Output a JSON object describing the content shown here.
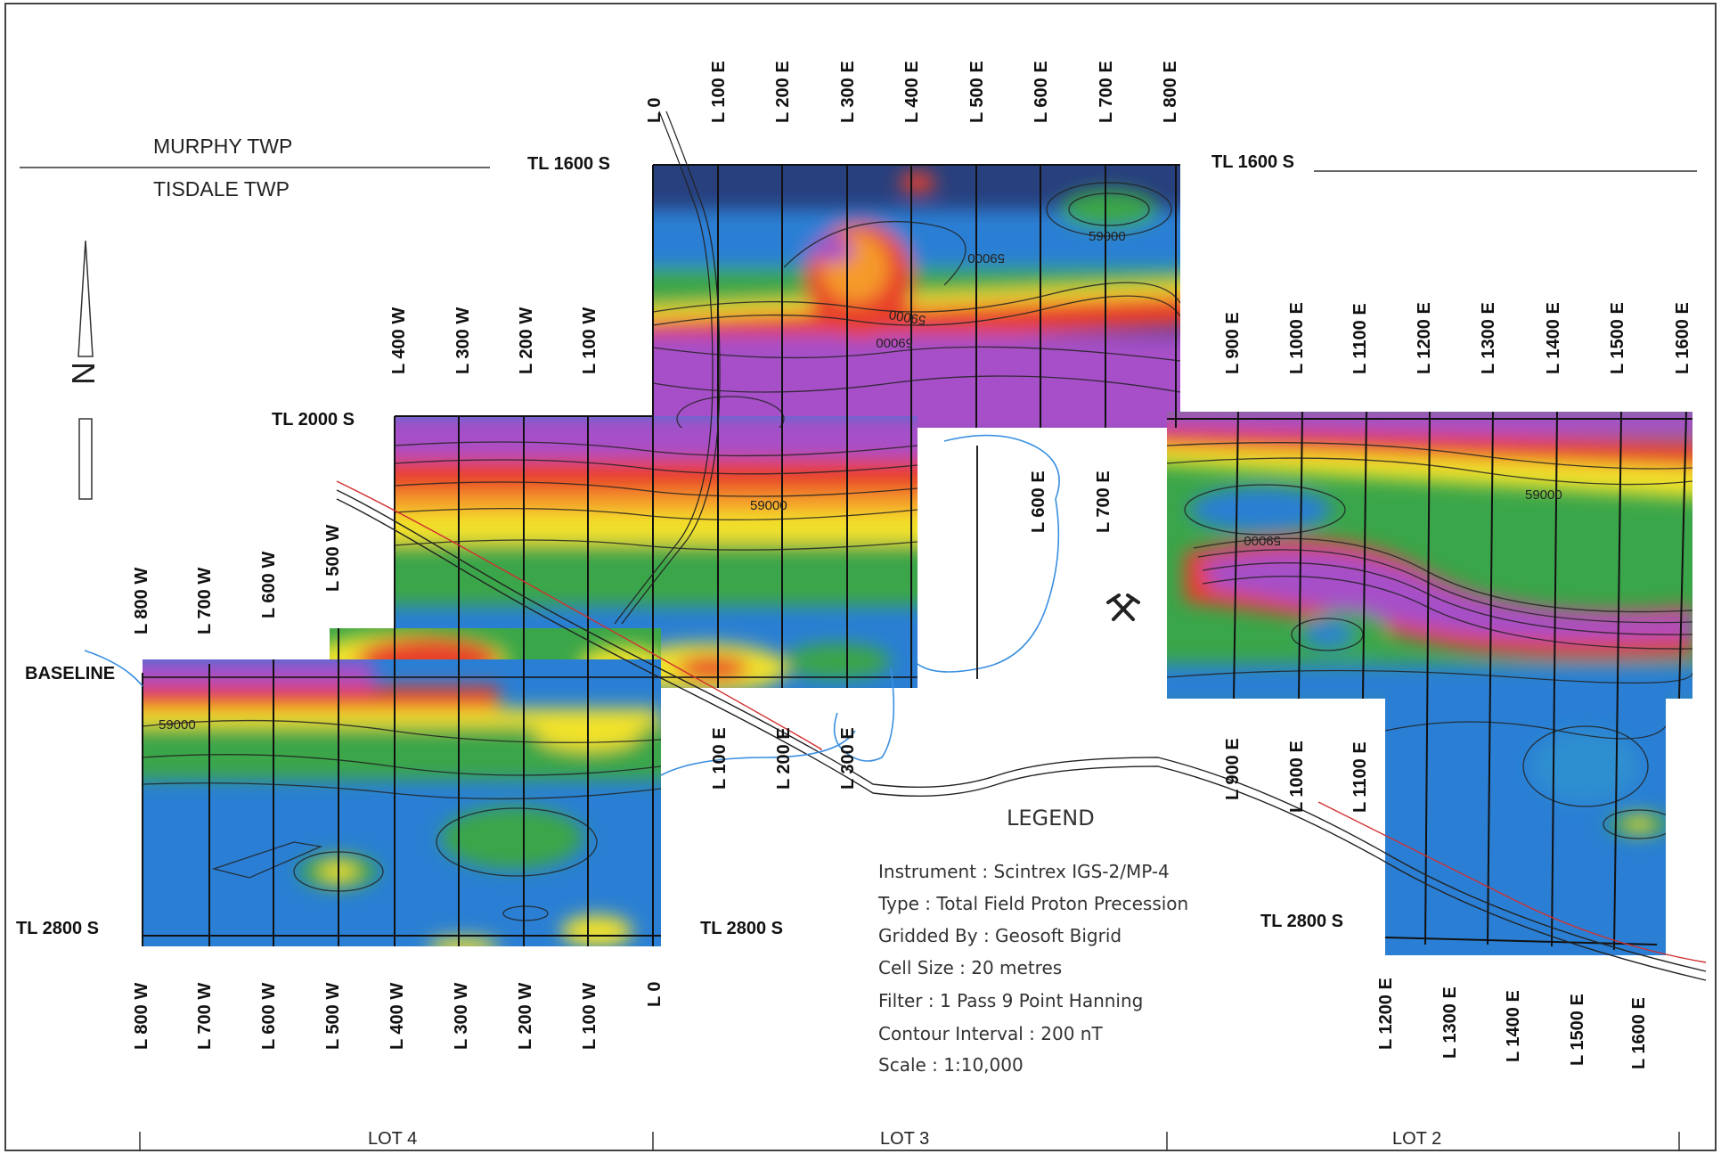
{
  "townships": {
    "north": "MURPHY TWP",
    "south": "TISDALE TWP"
  },
  "north_arrow": "N",
  "baseline_label": "BASELINE",
  "tie_lines": {
    "tl1600_left": "TL 1600 S",
    "tl1600_right": "TL 1600 S",
    "tl2000": "TL 2000 S",
    "tl2800_left": "TL 2800 S",
    "tl2800_mid": "TL 2800 S",
    "tl2800_right": "TL 2800 S"
  },
  "line_labels": {
    "top_center": [
      "L 0",
      "L 100 E",
      "L 200 E",
      "L 300 E",
      "L 400 E",
      "L 500 E",
      "L 600 E",
      "L 700 E",
      "L 800 E"
    ],
    "top_west": [
      "L 400 W",
      "L 300 W",
      "L 200 W",
      "L 100 W"
    ],
    "top_east": [
      "L 900 E",
      "L 1000 E",
      "L 1100 E",
      "L 1200 E",
      "L 1300 E",
      "L 1400 E",
      "L 1500 E",
      "L 1600 E"
    ],
    "mid_west": [
      "L 800 W",
      "L 700 W",
      "L 600 W",
      "L 500 W"
    ],
    "mid_center": [
      "L 600 E",
      "L 700 E"
    ],
    "bottom_center": [
      "L 100 E",
      "L 200 E",
      "L 300 E"
    ],
    "bottom_east": [
      "L 900 E",
      "L 1000 E",
      "L 1100 E"
    ],
    "bottom_west": [
      "L 800 W",
      "L 700 W",
      "L 600 W",
      "L 500 W",
      "L 400 W",
      "L 300 W",
      "L 200 W",
      "L 100 W",
      "L 0"
    ],
    "bottom_far_east": [
      "L 1200 E",
      "L 1300 E",
      "L 1400 E",
      "L 1500 E",
      "L 1600 E"
    ]
  },
  "contour_labels": [
    "59000",
    "59000",
    "59000",
    "59000",
    "59000",
    "59000",
    "59000",
    "59000"
  ],
  "legend": {
    "title": "LEGEND",
    "instrument": "Instrument : Scintrex IGS-2/MP-4",
    "type": "Type : Total Field Proton Precession",
    "gridded": "Gridded By : Geosoft Bigrid",
    "cell": "Cell Size : 20 metres",
    "filter": "Filter : 1 Pass 9 Point Hanning",
    "interval": "Contour Interval : 200 nT",
    "scale": "Scale :  1:10,000"
  },
  "lots": [
    "LOT 4",
    "LOT 3",
    "LOT 2"
  ],
  "colors": {
    "magnetic_high": "#a64fc8",
    "red": "#e8402a",
    "orange": "#f59a2c",
    "yellow": "#f2e22a",
    "green": "#3aa64a",
    "blue": "#2a7fd4",
    "dark_blue": "#28407e",
    "creek": "#3a8fe0"
  },
  "icons": [
    "pick-and-hammer-icon",
    "north-arrow-icon"
  ]
}
